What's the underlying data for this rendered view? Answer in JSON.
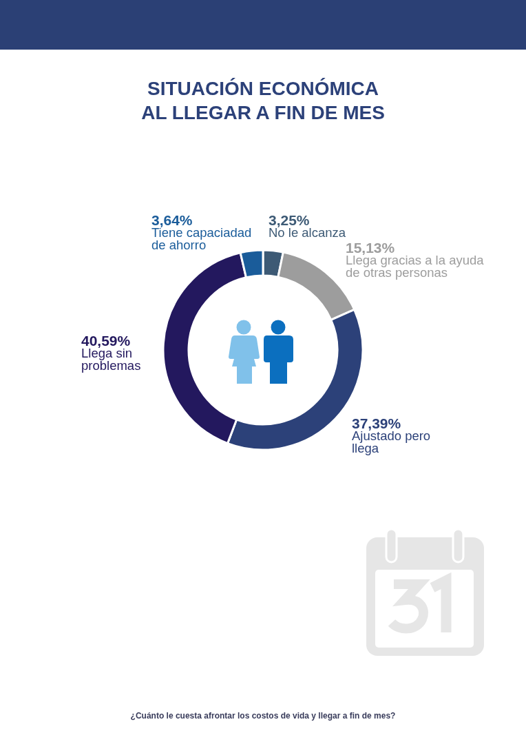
{
  "chart_data": {
    "type": "donut",
    "title": "SITUACIÓN ECONÓMICA AL LLEGAR A FIN DE MES",
    "categories": [
      "No le alcanza",
      "Llega gracias a la ayuda de otras personas",
      "Ajustado pero llega",
      "Llega sin problemas",
      "Tiene capaciadad de ahorro"
    ],
    "values": [
      3.25,
      15.13,
      37.39,
      40.59,
      3.64
    ],
    "colors": [
      "#3d5a75",
      "#9d9d9d",
      "#2c4179",
      "#23185e",
      "#1a5c9a"
    ],
    "value_labels": [
      "3,25%",
      "15,13%",
      "37,39%",
      "40,59%",
      "3,64%"
    ],
    "annotations": [
      "¿Cuánto le cuesta afrontar los costos de vida y llegar a fin de mes?"
    ]
  }
}
